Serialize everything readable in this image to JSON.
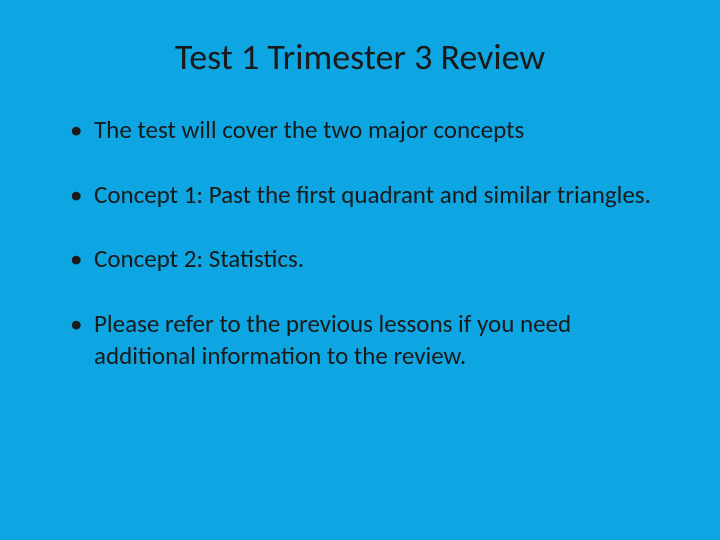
{
  "slide": {
    "title": "Test 1 Trimester 3 Review",
    "bullets": [
      "The test will cover the two major concepts",
      "Concept 1: Past the first quadrant and similar triangles.",
      "Concept 2: Statistics.",
      "Please refer to the previous lessons if you need additional information to the review."
    ],
    "background_color": "#0ea6e2",
    "text_color": "#1a1a1a",
    "title_fontsize": 36,
    "body_fontsize": 25
  }
}
